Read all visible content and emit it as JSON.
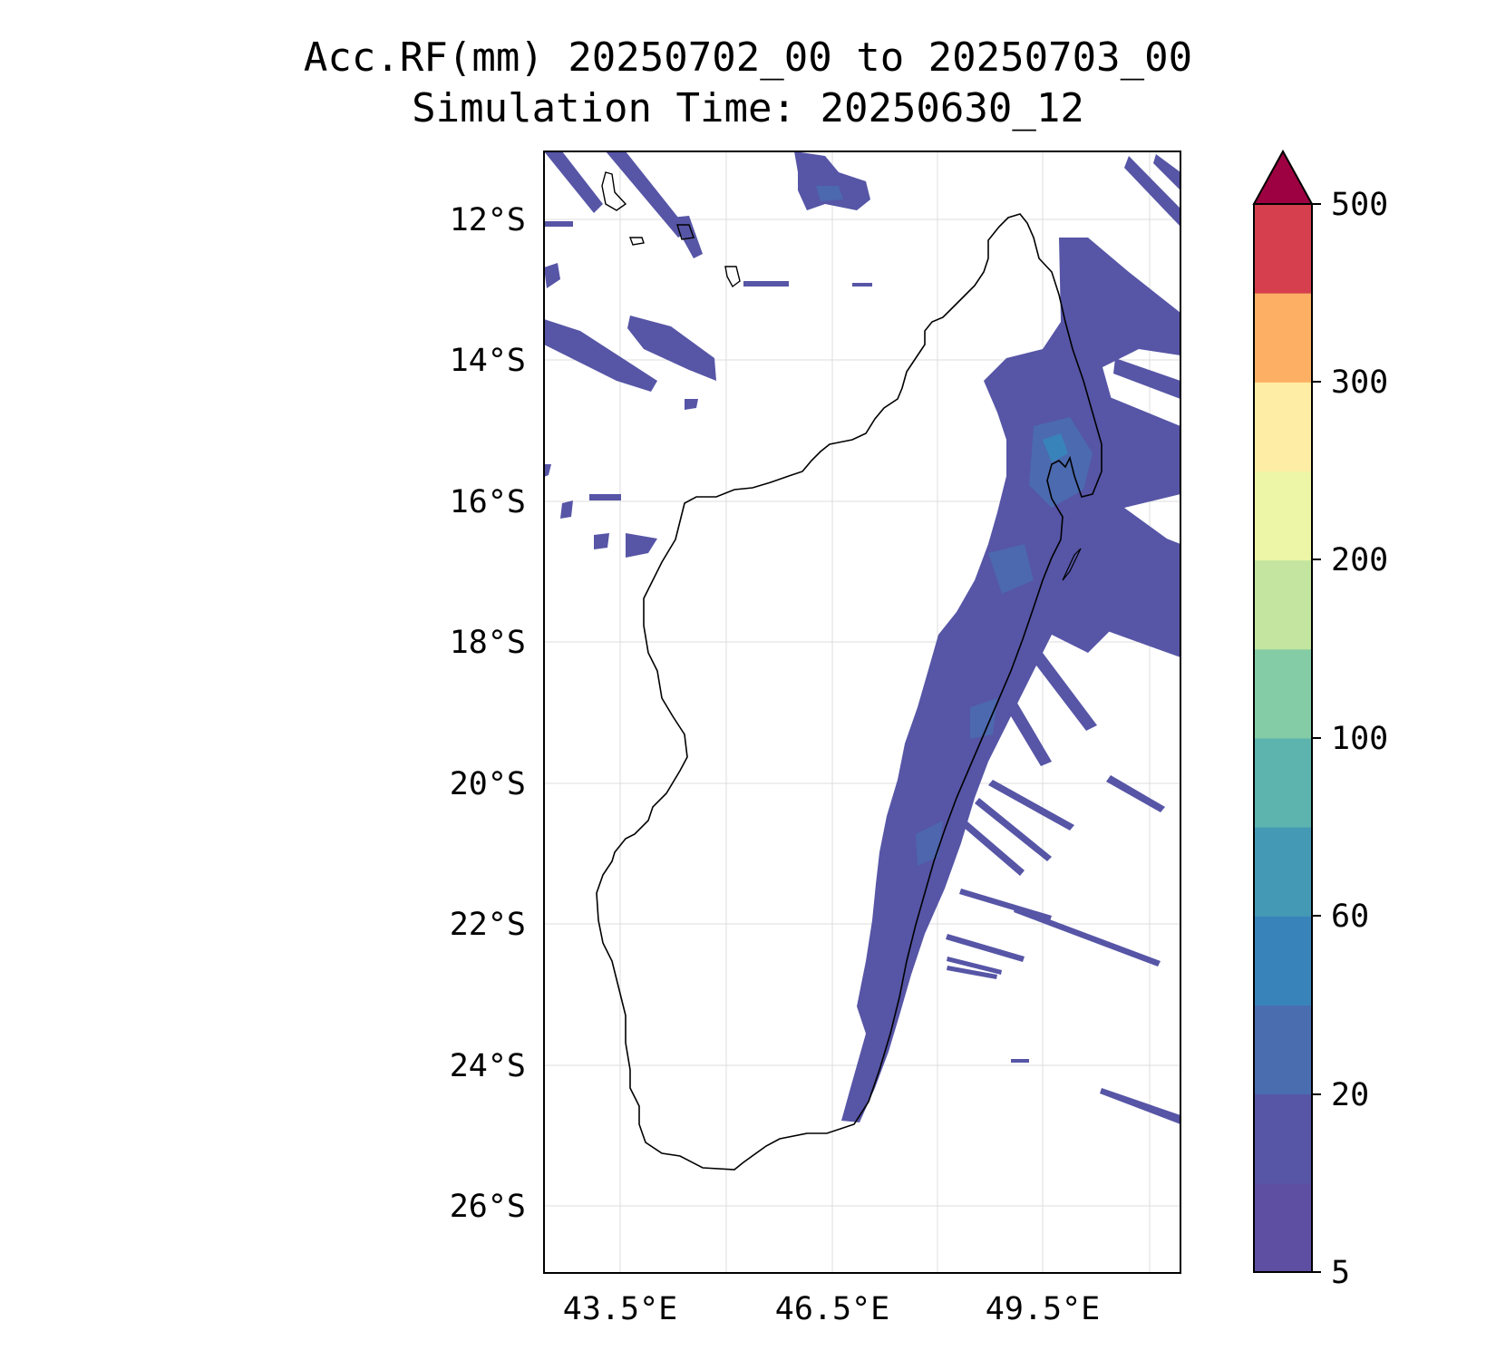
{
  "title": {
    "line1": "Acc.RF(mm) 20250702_00 to 20250703_00",
    "line2": "Simulation Time: 20250630_12"
  },
  "map": {
    "lat_ticks": [
      "12°S",
      "14°S",
      "16°S",
      "18°S",
      "20°S",
      "22°S",
      "24°S",
      "26°S"
    ],
    "lon_ticks": [
      "43.5°E",
      "46.5°E",
      "49.5°E"
    ],
    "gridlines": true,
    "coastline_color": "#000000"
  },
  "colorbar": {
    "tick_labels": [
      "5",
      "20",
      "60",
      "100",
      "200",
      "300",
      "500"
    ],
    "extend": "max",
    "colors": [
      "#5e4fa2",
      "#5655a6",
      "#4a6db0",
      "#3983bb",
      "#449ab5",
      "#5db3ad",
      "#84cca5",
      "#c3e59f",
      "#edf5a6",
      "#feeda4",
      "#fdb064",
      "#d6404e",
      "#9e0142"
    ]
  }
}
